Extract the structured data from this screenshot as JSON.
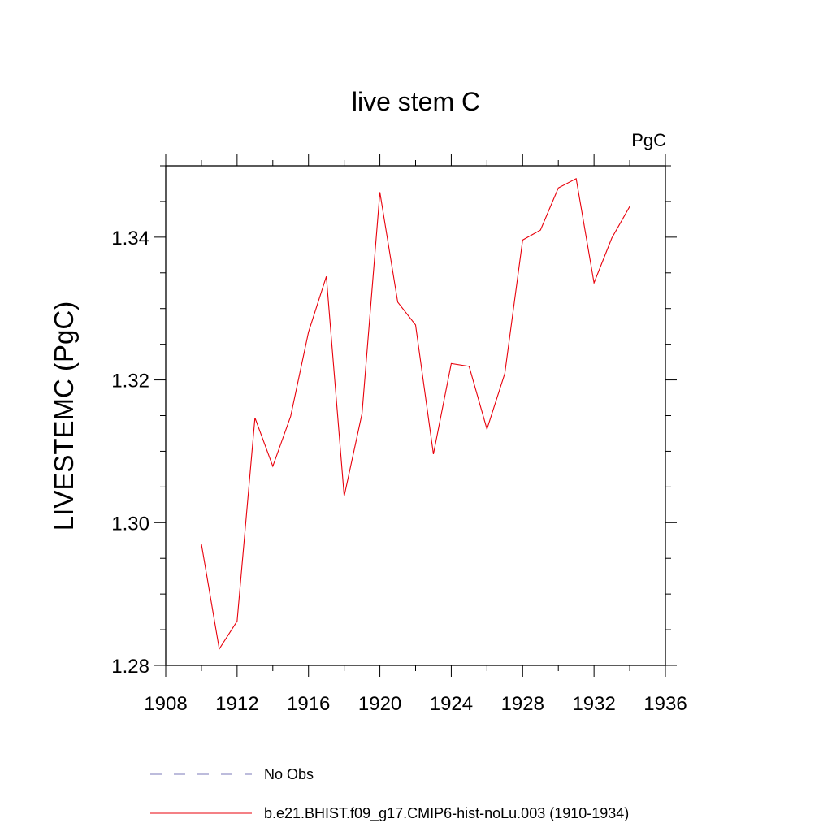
{
  "chart_data": {
    "type": "line",
    "title": "live stem C",
    "units_label": "PgC",
    "ylabel": "LIVESTEMC  (PgC)",
    "xlabel": "",
    "xlim": [
      1908,
      1936
    ],
    "ylim": [
      1.28,
      1.35
    ],
    "x_ticks": [
      "1908",
      "1912",
      "1916",
      "1920",
      "1924",
      "1928",
      "1932",
      "1936"
    ],
    "y_ticks": [
      "1.28",
      "1.30",
      "1.32",
      "1.34"
    ],
    "grid": false,
    "legend_position": "bottom",
    "series": [
      {
        "name": "b.e21.BHIST.f09_g17.CMIP6-hist-noLu.003 (1910-1934)",
        "color": "#e8000b",
        "style": "solid",
        "x": [
          1910,
          1911,
          1912,
          1913,
          1914,
          1915,
          1916,
          1917,
          1918,
          1919,
          1920,
          1921,
          1922,
          1923,
          1924,
          1925,
          1926,
          1927,
          1928,
          1929,
          1930,
          1931,
          1932,
          1933,
          1934
        ],
        "y": [
          1.297,
          1.2823,
          1.2862,
          1.3147,
          1.3079,
          1.3149,
          1.3267,
          1.3345,
          1.3037,
          1.3153,
          1.3463,
          1.3309,
          1.3277,
          1.3096,
          1.3223,
          1.3219,
          1.3131,
          1.3209,
          1.3396,
          1.341,
          1.3469,
          1.3482,
          1.3336,
          1.3399,
          1.3443
        ]
      }
    ],
    "legend": [
      {
        "label": "No Obs",
        "color": "#7b79b8",
        "style": "dashed"
      },
      {
        "label": "b.e21.BHIST.f09_g17.CMIP6-hist-noLu.003 (1910-1934)",
        "color": "#e8000b",
        "style": "solid"
      }
    ]
  }
}
